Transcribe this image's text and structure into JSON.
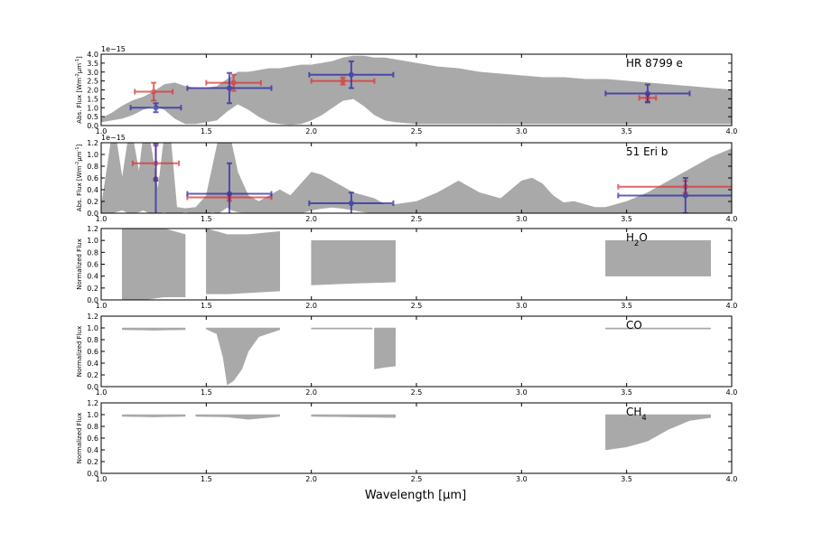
{
  "colors": {
    "model": "#a9a9a9",
    "red_points": "#dd3333",
    "blue_points": "#2a2aa8"
  },
  "figure": {
    "xlabel": "Wavelength [$\\mu$m]"
  },
  "chart_data": [
    {
      "type": "area",
      "panel_label": "HR 8799 e",
      "ylabel": "Abs. Flux [Wm$^{-2}$$\\mu$m$^{-1}$]",
      "offset_text": "1e−15",
      "xlim": [
        1.0,
        4.0
      ],
      "ylim": [
        0.0,
        4.0
      ],
      "x_ticks": [
        "1.0",
        "1.5",
        "2.0",
        "2.5",
        "3.0",
        "3.5",
        "4.0"
      ],
      "y_ticks": [
        "0.0",
        "0.5",
        "1.0",
        "1.5",
        "2.0",
        "2.5",
        "3.0",
        "3.5",
        "4.0"
      ],
      "model_envelope": {
        "x": [
          1.0,
          1.05,
          1.1,
          1.15,
          1.2,
          1.25,
          1.3,
          1.35,
          1.4,
          1.45,
          1.5,
          1.55,
          1.6,
          1.65,
          1.7,
          1.75,
          1.8,
          1.85,
          1.9,
          1.95,
          2.0,
          2.05,
          2.1,
          2.15,
          2.2,
          2.25,
          2.3,
          2.35,
          2.4,
          2.5,
          2.6,
          2.7,
          2.8,
          2.9,
          3.0,
          3.1,
          3.2,
          3.3,
          3.4,
          3.5,
          3.6,
          3.7,
          3.8,
          3.9,
          4.0
        ],
        "low": [
          0.2,
          0.3,
          0.4,
          0.6,
          0.9,
          1.1,
          0.9,
          0.4,
          0.1,
          0.1,
          0.2,
          0.3,
          0.8,
          1.2,
          0.9,
          0.5,
          0.2,
          0.1,
          0.05,
          0.1,
          0.3,
          0.6,
          1.0,
          1.4,
          1.5,
          1.1,
          0.6,
          0.3,
          0.2,
          0.1,
          0.1,
          0.1,
          0.1,
          0.1,
          0.1,
          0.1,
          0.1,
          0.1,
          0.1,
          0.1,
          0.1,
          0.1,
          0.1,
          0.1,
          0.1
        ],
        "high": [
          0.4,
          0.7,
          1.1,
          1.4,
          1.6,
          1.9,
          2.3,
          2.4,
          2.2,
          2.1,
          2.1,
          2.2,
          2.6,
          3.0,
          3.0,
          3.1,
          3.2,
          3.2,
          3.3,
          3.4,
          3.4,
          3.5,
          3.6,
          3.8,
          3.9,
          3.9,
          3.8,
          3.8,
          3.7,
          3.5,
          3.3,
          3.2,
          3.0,
          2.9,
          2.8,
          2.7,
          2.7,
          2.6,
          2.6,
          2.5,
          2.4,
          2.3,
          2.2,
          2.1,
          2.0
        ]
      },
      "series": [
        {
          "color": "red",
          "points": [
            {
              "x": 1.25,
              "y": 1.9,
              "xerr": 0.09,
              "yerr": 0.5
            },
            {
              "x": 1.63,
              "y": 2.4,
              "xerr": 0.13,
              "yerr": 0.45
            },
            {
              "x": 2.15,
              "y": 2.5,
              "xerr": 0.15,
              "yerr": 0.2
            },
            {
              "x": 3.6,
              "y": 1.55,
              "xerr": 0.04,
              "yerr": 0.2
            }
          ]
        },
        {
          "color": "blue",
          "points": [
            {
              "x": 1.26,
              "y": 1.0,
              "xerr": 0.12,
              "yerr": 0.25
            },
            {
              "x": 1.61,
              "y": 2.1,
              "xerr": 0.2,
              "yerr": 0.85
            },
            {
              "x": 2.19,
              "y": 2.85,
              "xerr": 0.2,
              "yerr": 0.75
            },
            {
              "x": 3.6,
              "y": 1.8,
              "xerr": 0.2,
              "yerr": 0.5
            }
          ]
        }
      ]
    },
    {
      "type": "area",
      "panel_label": "51 Eri b",
      "ylabel": "Abs. Flux [Wm$^{-2}$$\\mu$m$^{-1}$]",
      "offset_text": "1e−15",
      "xlim": [
        1.0,
        4.0
      ],
      "ylim": [
        0.0,
        1.2
      ],
      "x_ticks": [
        "1.0",
        "1.5",
        "2.0",
        "2.5",
        "3.0",
        "3.5",
        "4.0"
      ],
      "y_ticks": [
        "0.0",
        "0.2",
        "0.4",
        "0.6",
        "0.8",
        "1.0",
        "1.2"
      ],
      "model_envelope": {
        "x": [
          1.0,
          1.05,
          1.07,
          1.1,
          1.13,
          1.15,
          1.18,
          1.2,
          1.23,
          1.27,
          1.3,
          1.33,
          1.36,
          1.4,
          1.45,
          1.5,
          1.53,
          1.56,
          1.58,
          1.6,
          1.62,
          1.65,
          1.7,
          1.75,
          1.8,
          1.85,
          1.9,
          1.95,
          2.0,
          2.05,
          2.1,
          2.15,
          2.2,
          2.25,
          2.3,
          2.35,
          2.4,
          2.5,
          2.6,
          2.7,
          2.8,
          2.9,
          3.0,
          3.05,
          3.1,
          3.15,
          3.2,
          3.25,
          3.3,
          3.35,
          3.4,
          3.5,
          3.6,
          3.7,
          3.8,
          3.9,
          4.0
        ],
        "low": [
          0.0,
          0.0,
          0.02,
          0.05,
          0.0,
          0.0,
          0.02,
          0.05,
          0.0,
          0.0,
          0.02,
          0.0,
          0.0,
          0.02,
          0.0,
          0.0,
          0.02,
          0.0,
          0.05,
          0.1,
          0.05,
          0.02,
          0.0,
          0.0,
          0.0,
          0.0,
          0.0,
          0.0,
          0.05,
          0.08,
          0.1,
          0.08,
          0.05,
          0.02,
          0.0,
          0.0,
          0.0,
          0.0,
          0.0,
          0.0,
          0.0,
          0.0,
          0.0,
          0.0,
          0.0,
          0.0,
          0.0,
          0.0,
          0.0,
          0.0,
          0.0,
          0.0,
          0.0,
          0.0,
          0.0,
          0.0,
          0.0
        ],
        "high": [
          0.1,
          1.3,
          1.3,
          0.6,
          1.3,
          1.3,
          0.7,
          1.3,
          1.3,
          0.4,
          1.3,
          1.3,
          0.1,
          0.08,
          0.1,
          0.3,
          0.8,
          1.3,
          1.3,
          1.3,
          1.2,
          0.7,
          0.3,
          0.2,
          0.3,
          0.4,
          0.3,
          0.5,
          0.7,
          0.65,
          0.55,
          0.45,
          0.35,
          0.3,
          0.25,
          0.15,
          0.15,
          0.2,
          0.35,
          0.55,
          0.35,
          0.25,
          0.55,
          0.6,
          0.5,
          0.3,
          0.18,
          0.2,
          0.15,
          0.1,
          0.1,
          0.2,
          0.35,
          0.55,
          0.75,
          0.95,
          1.1
        ]
      },
      "series": [
        {
          "color": "red",
          "points": [
            {
              "x": 1.26,
              "y": 0.85,
              "xerr": 0.11,
              "yerr": 0.3
            },
            {
              "x": 1.61,
              "y": 0.27,
              "xerr": 0.2,
              "yerr": 0.06
            },
            {
              "x": 3.78,
              "y": 0.45,
              "xerr": 0.32,
              "yerr": 0.1
            }
          ]
        },
        {
          "color": "blue",
          "points": [
            {
              "x": 1.26,
              "y": 0.58,
              "xerr": 0.0,
              "yerr": 0.6
            },
            {
              "x": 1.61,
              "y": 0.33,
              "xerr": 0.2,
              "yerr": 0.52
            },
            {
              "x": 2.19,
              "y": 0.17,
              "xerr": 0.2,
              "yerr": 0.18
            },
            {
              "x": 3.78,
              "y": 0.3,
              "xerr": 0.32,
              "yerr": 0.3
            }
          ]
        }
      ]
    },
    {
      "type": "area",
      "panel_label": "H$_2$O",
      "ylabel": "Normalized Flux",
      "xlim": [
        1.0,
        4.0
      ],
      "ylim": [
        0.0,
        1.2
      ],
      "x_ticks": [
        "1.0",
        "1.5",
        "2.0",
        "2.5",
        "3.0",
        "3.5",
        "4.0"
      ],
      "y_ticks": [
        "0.0",
        "0.2",
        "0.4",
        "0.6",
        "0.8",
        "1.0",
        "1.2"
      ],
      "bands": [
        {
          "x": [
            1.1,
            1.2,
            1.3,
            1.4
          ],
          "low": [
            0.0,
            0.0,
            0.05,
            0.05
          ],
          "high": [
            1.2,
            1.2,
            1.2,
            1.1
          ]
        },
        {
          "x": [
            1.5,
            1.6,
            1.7,
            1.85
          ],
          "low": [
            0.1,
            0.1,
            0.12,
            0.15
          ],
          "high": [
            1.2,
            1.1,
            1.1,
            1.15
          ]
        },
        {
          "x": [
            2.0,
            2.2,
            2.4
          ],
          "low": [
            0.25,
            0.28,
            0.3
          ],
          "high": [
            1.0,
            1.0,
            1.0
          ]
        },
        {
          "x": [
            3.4,
            3.6,
            3.9
          ],
          "low": [
            0.4,
            0.4,
            0.4
          ],
          "high": [
            1.0,
            1.0,
            1.0
          ]
        }
      ]
    },
    {
      "type": "area",
      "panel_label": "CO",
      "ylabel": "Normalized Flux",
      "xlim": [
        1.0,
        4.0
      ],
      "ylim": [
        0.0,
        1.2
      ],
      "x_ticks": [
        "1.0",
        "1.5",
        "2.0",
        "2.5",
        "3.0",
        "3.5",
        "4.0"
      ],
      "y_ticks": [
        "0.0",
        "0.2",
        "0.4",
        "0.6",
        "0.8",
        "1.0",
        "1.2"
      ],
      "bands": [
        {
          "x": [
            1.1,
            1.25,
            1.4
          ],
          "low": [
            0.97,
            0.96,
            0.97
          ],
          "high": [
            1.0,
            1.0,
            1.0
          ]
        },
        {
          "x": [
            1.5,
            1.55,
            1.58,
            1.6,
            1.63,
            1.67,
            1.7,
            1.75,
            1.85
          ],
          "low": [
            0.98,
            0.9,
            0.5,
            0.03,
            0.1,
            0.3,
            0.6,
            0.85,
            0.97
          ],
          "high": [
            1.0,
            1.0,
            1.0,
            1.0,
            1.0,
            1.0,
            1.0,
            1.0,
            1.0
          ]
        },
        {
          "x": [
            2.0,
            2.2,
            2.29
          ],
          "low": [
            0.98,
            0.98,
            0.98
          ],
          "high": [
            1.0,
            1.0,
            1.0
          ]
        },
        {
          "x": [
            2.3,
            2.35,
            2.4
          ],
          "low": [
            0.3,
            0.33,
            0.35
          ],
          "high": [
            1.0,
            1.0,
            1.0
          ]
        },
        {
          "x": [
            3.4,
            3.6,
            3.9
          ],
          "low": [
            0.98,
            0.98,
            0.98
          ],
          "high": [
            1.0,
            1.0,
            1.0
          ]
        }
      ]
    },
    {
      "type": "area",
      "panel_label": "CH$_4$",
      "ylabel": "Normalized Flux",
      "xlim": [
        1.0,
        4.0
      ],
      "ylim": [
        0.0,
        1.2
      ],
      "x_ticks": [
        "1.0",
        "1.5",
        "2.0",
        "2.5",
        "3.0",
        "3.5",
        "4.0"
      ],
      "y_ticks": [
        "0.0",
        "0.2",
        "0.4",
        "0.6",
        "0.8",
        "1.0",
        "1.2"
      ],
      "bands": [
        {
          "x": [
            1.1,
            1.25,
            1.4
          ],
          "low": [
            0.97,
            0.96,
            0.97
          ],
          "high": [
            1.0,
            1.0,
            1.0
          ]
        },
        {
          "x": [
            1.45,
            1.6,
            1.7,
            1.85
          ],
          "low": [
            0.97,
            0.96,
            0.92,
            0.97
          ],
          "high": [
            1.0,
            1.0,
            1.0,
            1.0
          ]
        },
        {
          "x": [
            2.0,
            2.2,
            2.4
          ],
          "low": [
            0.97,
            0.96,
            0.95
          ],
          "high": [
            1.0,
            1.0,
            1.0
          ]
        },
        {
          "x": [
            3.4,
            3.5,
            3.6,
            3.7,
            3.8,
            3.9
          ],
          "low": [
            0.4,
            0.45,
            0.55,
            0.75,
            0.9,
            0.95
          ],
          "high": [
            1.0,
            1.0,
            1.0,
            1.0,
            1.0,
            1.0
          ]
        }
      ]
    }
  ]
}
